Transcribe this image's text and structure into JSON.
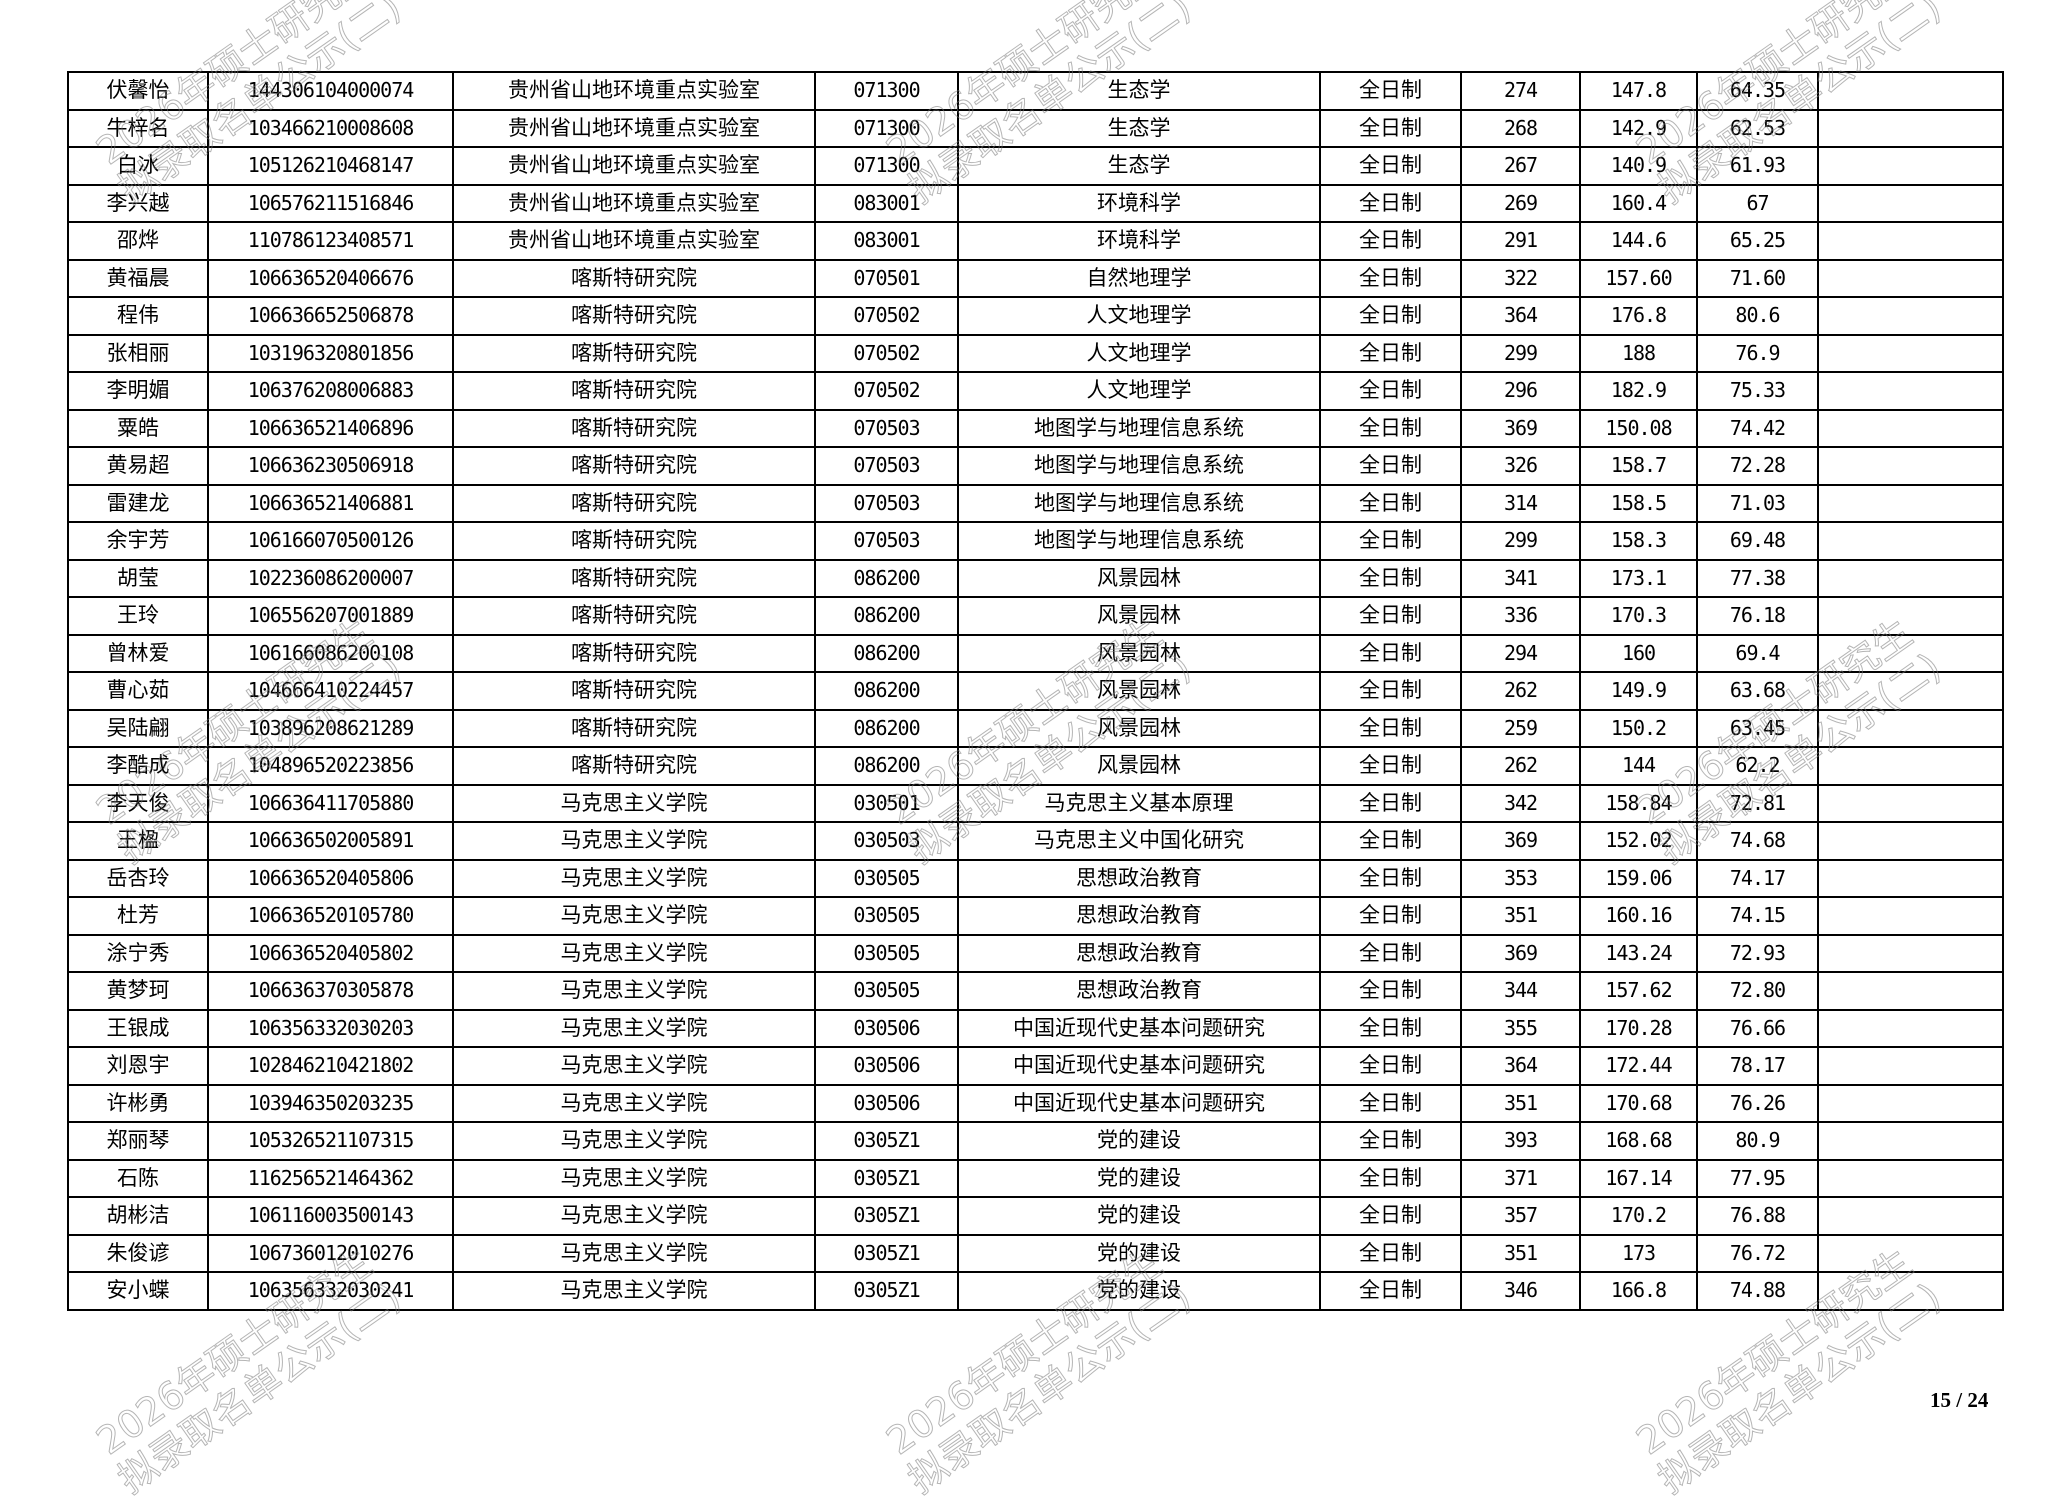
{
  "watermark": {
    "line1": "2026年硕士研究生",
    "line2": "拟录取名单公示(二)"
  },
  "page_number": "15 / 24",
  "rows": [
    [
      "伏馨怡",
      "144306104000074",
      "贵州省山地环境重点实验室",
      "071300",
      "生态学",
      "全日制",
      "274",
      "147.8",
      "64.35",
      ""
    ],
    [
      "牛梓名",
      "103466210008608",
      "贵州省山地环境重点实验室",
      "071300",
      "生态学",
      "全日制",
      "268",
      "142.9",
      "62.53",
      ""
    ],
    [
      "白冰",
      "105126210468147",
      "贵州省山地环境重点实验室",
      "071300",
      "生态学",
      "全日制",
      "267",
      "140.9",
      "61.93",
      ""
    ],
    [
      "李兴越",
      "106576211516846",
      "贵州省山地环境重点实验室",
      "083001",
      "环境科学",
      "全日制",
      "269",
      "160.4",
      "67",
      ""
    ],
    [
      "邵烨",
      "110786123408571",
      "贵州省山地环境重点实验室",
      "083001",
      "环境科学",
      "全日制",
      "291",
      "144.6",
      "65.25",
      ""
    ],
    [
      "黄福晨",
      "106636520406676",
      "喀斯特研究院",
      "070501",
      "自然地理学",
      "全日制",
      "322",
      "157.60",
      "71.60",
      ""
    ],
    [
      "程伟",
      "106636652506878",
      "喀斯特研究院",
      "070502",
      "人文地理学",
      "全日制",
      "364",
      "176.8",
      "80.6",
      ""
    ],
    [
      "张相丽",
      "103196320801856",
      "喀斯特研究院",
      "070502",
      "人文地理学",
      "全日制",
      "299",
      "188",
      "76.9",
      ""
    ],
    [
      "李明媚",
      "106376208006883",
      "喀斯特研究院",
      "070502",
      "人文地理学",
      "全日制",
      "296",
      "182.9",
      "75.33",
      ""
    ],
    [
      "粟皓",
      "106636521406896",
      "喀斯特研究院",
      "070503",
      "地图学与地理信息系统",
      "全日制",
      "369",
      "150.08",
      "74.42",
      ""
    ],
    [
      "黄易超",
      "106636230506918",
      "喀斯特研究院",
      "070503",
      "地图学与地理信息系统",
      "全日制",
      "326",
      "158.7",
      "72.28",
      ""
    ],
    [
      "雷建龙",
      "106636521406881",
      "喀斯特研究院",
      "070503",
      "地图学与地理信息系统",
      "全日制",
      "314",
      "158.5",
      "71.03",
      ""
    ],
    [
      "余宇芳",
      "106166070500126",
      "喀斯特研究院",
      "070503",
      "地图学与地理信息系统",
      "全日制",
      "299",
      "158.3",
      "69.48",
      ""
    ],
    [
      "胡莹",
      "102236086200007",
      "喀斯特研究院",
      "086200",
      "风景园林",
      "全日制",
      "341",
      "173.1",
      "77.38",
      ""
    ],
    [
      "王玲",
      "106556207001889",
      "喀斯特研究院",
      "086200",
      "风景园林",
      "全日制",
      "336",
      "170.3",
      "76.18",
      ""
    ],
    [
      "曾林爱",
      "106166086200108",
      "喀斯特研究院",
      "086200",
      "风景园林",
      "全日制",
      "294",
      "160",
      "69.4",
      ""
    ],
    [
      "曹心茹",
      "104666410224457",
      "喀斯特研究院",
      "086200",
      "风景园林",
      "全日制",
      "262",
      "149.9",
      "63.68",
      ""
    ],
    [
      "吴陆翩",
      "103896208621289",
      "喀斯特研究院",
      "086200",
      "风景园林",
      "全日制",
      "259",
      "150.2",
      "63.45",
      ""
    ],
    [
      "李酷成",
      "104896520223856",
      "喀斯特研究院",
      "086200",
      "风景园林",
      "全日制",
      "262",
      "144",
      "62.2",
      ""
    ],
    [
      "李天俊",
      "106636411705880",
      "马克思主义学院",
      "030501",
      "马克思主义基本原理",
      "全日制",
      "342",
      "158.84",
      "72.81",
      ""
    ],
    [
      "王楹",
      "106636502005891",
      "马克思主义学院",
      "030503",
      "马克思主义中国化研究",
      "全日制",
      "369",
      "152.02",
      "74.68",
      ""
    ],
    [
      "岳杏玲",
      "106636520405806",
      "马克思主义学院",
      "030505",
      "思想政治教育",
      "全日制",
      "353",
      "159.06",
      "74.17",
      ""
    ],
    [
      "杜芳",
      "106636520105780",
      "马克思主义学院",
      "030505",
      "思想政治教育",
      "全日制",
      "351",
      "160.16",
      "74.15",
      ""
    ],
    [
      "涂宁秀",
      "106636520405802",
      "马克思主义学院",
      "030505",
      "思想政治教育",
      "全日制",
      "369",
      "143.24",
      "72.93",
      ""
    ],
    [
      "黄梦珂",
      "106636370305878",
      "马克思主义学院",
      "030505",
      "思想政治教育",
      "全日制",
      "344",
      "157.62",
      "72.80",
      ""
    ],
    [
      "王银成",
      "106356332030203",
      "马克思主义学院",
      "030506",
      "中国近现代史基本问题研究",
      "全日制",
      "355",
      "170.28",
      "76.66",
      ""
    ],
    [
      "刘恩宇",
      "102846210421802",
      "马克思主义学院",
      "030506",
      "中国近现代史基本问题研究",
      "全日制",
      "364",
      "172.44",
      "78.17",
      ""
    ],
    [
      "许彬勇",
      "103946350203235",
      "马克思主义学院",
      "030506",
      "中国近现代史基本问题研究",
      "全日制",
      "351",
      "170.68",
      "76.26",
      ""
    ],
    [
      "郑丽琴",
      "105326521107315",
      "马克思主义学院",
      "0305Z1",
      "党的建设",
      "全日制",
      "393",
      "168.68",
      "80.9",
      ""
    ],
    [
      "石陈",
      "116256521464362",
      "马克思主义学院",
      "0305Z1",
      "党的建设",
      "全日制",
      "371",
      "167.14",
      "77.95",
      ""
    ],
    [
      "胡彬洁",
      "106116003500143",
      "马克思主义学院",
      "0305Z1",
      "党的建设",
      "全日制",
      "357",
      "170.2",
      "76.88",
      ""
    ],
    [
      "朱俊谚",
      "106736012010276",
      "马克思主义学院",
      "0305Z1",
      "党的建设",
      "全日制",
      "351",
      "173",
      "76.72",
      ""
    ],
    [
      "安小蝶",
      "106356332030241",
      "马克思主义学院",
      "0305Z1",
      "党的建设",
      "全日制",
      "346",
      "166.8",
      "74.88",
      ""
    ]
  ]
}
